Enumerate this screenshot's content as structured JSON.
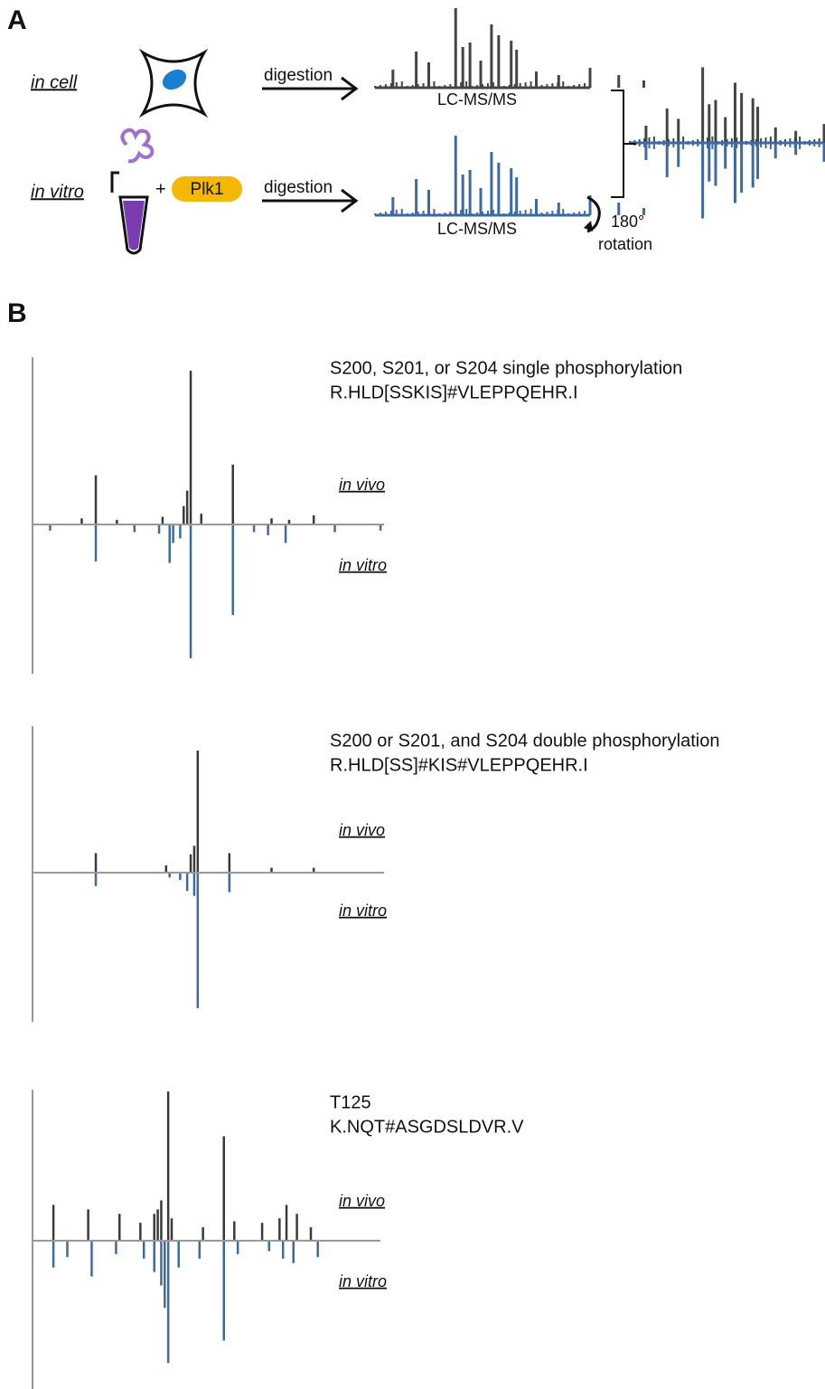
{
  "panel_a": {
    "label": "A",
    "in_cell": "in cell",
    "in_vitro": "in vitro",
    "plus": "+",
    "plk1": "Plk1",
    "digestion_top": "digestion",
    "digestion_bottom": "digestion",
    "lcms_top": "LC-MS/MS",
    "lcms_bottom": "LC-MS/MS",
    "rotation_degrees": "180°",
    "rotation": "rotation"
  },
  "panel_b": {
    "label": "B",
    "top_color": "#3a3a3a",
    "bottom_color": "#3d6aa1",
    "spectra": [
      {
        "title": "S200, S201, or S204 single phosphorylation",
        "peptide": "R.HLD[SSKIS]#VLEPPQEHR.I",
        "top_label": "in vivo",
        "bottom_label": "in vitro",
        "in_vivo": {
          "x": [
            18,
            45,
            44,
            43,
            57,
            80,
            14,
            24,
            68,
            73,
            37,
            48
          ],
          "values": [
            32,
            100,
            22,
            12,
            39,
            6,
            4,
            3,
            4,
            3,
            5,
            7
          ]
        },
        "in_vitro": {
          "x": [
            18,
            39,
            45,
            57,
            40,
            42,
            67,
            72,
            5,
            29,
            63,
            99,
            36,
            86
          ],
          "values": [
            24,
            25,
            87,
            59,
            12,
            9,
            7,
            12,
            4,
            5,
            5,
            4,
            6,
            5
          ]
        }
      },
      {
        "title": "S200 or S201, and S204 double phosphorylation",
        "peptide": "R.HLD[SS]#KIS#VLEPPQEHR.I",
        "top_label": "in vivo",
        "bottom_label": "in vitro",
        "in_vivo": {
          "x": [
            47,
            46,
            45,
            18,
            56,
            38,
            68,
            80
          ],
          "values": [
            100,
            22,
            15,
            16,
            16,
            6,
            4,
            4
          ]
        },
        "in_vitro": {
          "x": [
            47,
            46,
            44,
            18,
            56,
            42,
            39
          ],
          "values": [
            111,
            19,
            15,
            11,
            16,
            6,
            4
          ]
        }
      },
      {
        "title": "T125",
        "peptide": "K.NQT#ASGDSLDVR.V",
        "top_label": "in vivo",
        "bottom_label": "in vitro",
        "in_vivo": {
          "x": [
            39,
            37,
            36,
            35,
            55,
            6,
            16,
            25,
            31,
            40,
            49,
            58,
            66,
            71,
            73,
            76,
            80
          ],
          "values": [
            100,
            27,
            21,
            18,
            70,
            24,
            21,
            18,
            12,
            15,
            9,
            13,
            12,
            15,
            24,
            18,
            9
          ]
        },
        "in_vitro": {
          "x": [
            39,
            38,
            37,
            35,
            55,
            6,
            17,
            10,
            24,
            32,
            42,
            48,
            59,
            68,
            72,
            75,
            82
          ],
          "values": [
            82,
            45,
            30,
            21,
            67,
            18,
            24,
            11,
            9,
            12,
            18,
            12,
            9,
            7,
            12,
            15,
            11
          ]
        }
      }
    ]
  }
}
